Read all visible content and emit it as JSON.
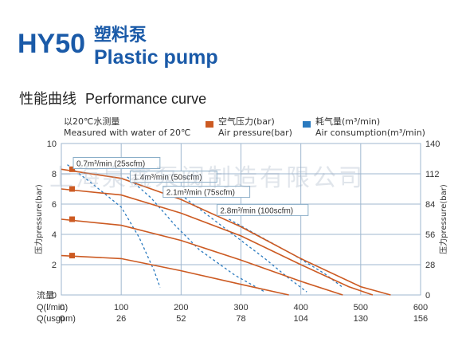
{
  "header": {
    "model": "HY50",
    "title_cn": "塑料泵",
    "title_en": "Plastic pump",
    "section_cn": "性能曲线",
    "section_en": "Performance curve",
    "note_cn": "以20℃水测量",
    "note_en": "Measured with water of 20℃",
    "watermark": "上海泉鑫泵阀制造有限公司"
  },
  "legend": {
    "air_pressure_cn": "空气压力(bar)",
    "air_pressure_en": "Air pressure(bar)",
    "air_consumption_cn": "耗气量(m³/min)",
    "air_consumption_en": "Air consumption(m³/min)"
  },
  "colors": {
    "pressure_curve": "#cc5a22",
    "air_consumption_curve": "#2a7abf",
    "grid": "#9fb7cf",
    "title_blue": "#1a5aa8",
    "label_box_border": "#8aaec8"
  },
  "chart_data": {
    "type": "line",
    "y_left_label": "压力pressure(bar)",
    "y_left_ticks": [
      "0",
      "2",
      "4",
      "6",
      "8",
      "10"
    ],
    "y_left_range": [
      0,
      10
    ],
    "y_right_label": "压力pressure(bar)",
    "y_right_ticks": [
      "0",
      "28",
      "56",
      "84",
      "112",
      "140"
    ],
    "y_right_range": [
      0,
      140
    ],
    "x_ticks_lpm": [
      "0",
      "100",
      "200",
      "300",
      "400",
      "500",
      "600"
    ],
    "x_ticks_usgpm": [
      "0",
      "26",
      "52",
      "78",
      "104",
      "130",
      "156"
    ],
    "x_range": [
      0,
      600
    ],
    "x_row_labels": {
      "flow": "流量",
      "q_lpm": "Q(l/min)",
      "q_usgpm": "Q(usgpm)",
      "zero": "0"
    },
    "grid": true,
    "pressure_series": [
      {
        "name": "8",
        "points": [
          [
            0,
            8.3
          ],
          [
            100,
            7.7
          ],
          [
            200,
            6.3
          ],
          [
            300,
            4.5
          ],
          [
            400,
            2.4
          ],
          [
            500,
            0.55
          ],
          [
            550,
            0
          ]
        ]
      },
      {
        "name": "7",
        "points": [
          [
            0,
            7.0
          ],
          [
            100,
            6.6
          ],
          [
            200,
            5.4
          ],
          [
            300,
            3.9
          ],
          [
            400,
            2.0
          ],
          [
            480,
            0.55
          ],
          [
            520,
            0
          ]
        ]
      },
      {
        "name": "5",
        "points": [
          [
            0,
            5.0
          ],
          [
            100,
            4.6
          ],
          [
            200,
            3.6
          ],
          [
            300,
            2.3
          ],
          [
            400,
            0.9
          ],
          [
            470,
            0
          ]
        ]
      },
      {
        "name": "2.6",
        "points": [
          [
            0,
            2.6
          ],
          [
            100,
            2.4
          ],
          [
            200,
            1.6
          ],
          [
            300,
            0.7
          ],
          [
            380,
            0
          ]
        ]
      }
    ],
    "pressure_start_markers": [
      8.3,
      7.0,
      5.0,
      2.6
    ],
    "air_consumption_series": [
      {
        "name": "0.7m³/min (25scfm)",
        "points": [
          [
            10,
            8.6
          ],
          [
            50,
            7.4
          ],
          [
            100,
            5.8
          ],
          [
            130,
            3.8
          ],
          [
            155,
            1.6
          ],
          [
            165,
            0.5
          ]
        ]
      },
      {
        "name": "1.4m³/min (50scfm)",
        "points": [
          [
            110,
            7.8
          ],
          [
            150,
            6.4
          ],
          [
            190,
            4.6
          ],
          [
            230,
            3.0
          ],
          [
            290,
            1.3
          ],
          [
            340,
            0.2
          ]
        ]
      },
      {
        "name": "2.1m³/min (75scfm)",
        "points": [
          [
            200,
            6.6
          ],
          [
            240,
            5.4
          ],
          [
            290,
            3.9
          ],
          [
            340,
            2.4
          ],
          [
            380,
            1.1
          ],
          [
            410,
            0.2
          ]
        ]
      },
      {
        "name": "2.8m³/min (100scfm)",
        "points": [
          [
            280,
            5.0
          ],
          [
            330,
            3.9
          ],
          [
            390,
            2.6
          ],
          [
            440,
            1.4
          ],
          [
            470,
            0.5
          ]
        ]
      }
    ],
    "curve_labels": [
      {
        "text": "0.7m³/min (25scfm)",
        "x": 20,
        "y": 8.5
      },
      {
        "text": "1.4m³/min (50scfm)",
        "x": 115,
        "y": 7.6
      },
      {
        "text": "2.1m³/min (75scfm)",
        "x": 170,
        "y": 6.6
      },
      {
        "text": "2.8m³/min (100scfm)",
        "x": 260,
        "y": 5.4
      }
    ]
  }
}
